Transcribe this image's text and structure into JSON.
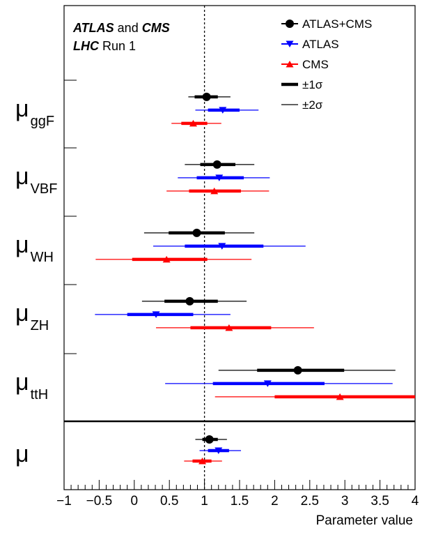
{
  "chart_data": {
    "type": "scatter",
    "xlabel": "Parameter value",
    "xlim": [
      -1,
      4
    ],
    "xticks": [
      {
        "value": -1,
        "label": "−1"
      },
      {
        "value": -0.5,
        "label": "−0.5"
      },
      {
        "value": 0,
        "label": "0"
      },
      {
        "value": 0.5,
        "label": "0.5"
      },
      {
        "value": 1,
        "label": "1"
      },
      {
        "value": 1.5,
        "label": "1.5"
      },
      {
        "value": 2,
        "label": "2"
      },
      {
        "value": 2.5,
        "label": "2.5"
      },
      {
        "value": 3,
        "label": "3"
      },
      {
        "value": 3.5,
        "label": "3.5"
      },
      {
        "value": 4,
        "label": "4"
      }
    ],
    "reference_line": 1,
    "annotation": {
      "line1": {
        "bold": "ATLAS",
        "mid": " and ",
        "bold2": "CMS"
      },
      "line2": {
        "bold": "LHC",
        "rest": " Run 1"
      }
    },
    "legend": [
      {
        "label": "ATLAS+CMS",
        "kind": "circle",
        "color": "#000000"
      },
      {
        "label": "ATLAS",
        "kind": "triangle-down",
        "color": "#0000ff"
      },
      {
        "label": "CMS",
        "kind": "triangle-up",
        "color": "#ff0000"
      },
      {
        "label": "±1σ",
        "kind": "thick-line",
        "color": "#000000"
      },
      {
        "label": "±2σ",
        "kind": "thin-line",
        "color": "#000000"
      }
    ],
    "series_styles": [
      {
        "name": "ATLAS+CMS",
        "marker": "circle",
        "color": "#000000"
      },
      {
        "name": "ATLAS",
        "marker": "triangle-down",
        "color": "#0000ff"
      },
      {
        "name": "CMS",
        "marker": "triangle-up",
        "color": "#ff0000"
      }
    ],
    "parameters": [
      {
        "name": "μ",
        "sub": "ggF",
        "values": [
          {
            "series": "ATLAS+CMS",
            "value": 1.03,
            "sig1": [
              0.86,
              1.19
            ],
            "sig2": [
              0.77,
              1.37
            ]
          },
          {
            "series": "ATLAS",
            "value": 1.26,
            "sig1": [
              1.05,
              1.5
            ],
            "sig2": [
              0.87,
              1.77
            ]
          },
          {
            "series": "CMS",
            "value": 0.84,
            "sig1": [
              0.67,
              1.04
            ],
            "sig2": [
              0.53,
              1.24
            ]
          }
        ]
      },
      {
        "name": "μ",
        "sub": "VBF",
        "values": [
          {
            "series": "ATLAS+CMS",
            "value": 1.18,
            "sig1": [
              0.94,
              1.44
            ],
            "sig2": [
              0.72,
              1.71
            ]
          },
          {
            "series": "ATLAS",
            "value": 1.21,
            "sig1": [
              0.89,
              1.56
            ],
            "sig2": [
              0.62,
              1.93
            ]
          },
          {
            "series": "CMS",
            "value": 1.14,
            "sig1": [
              0.78,
              1.52
            ],
            "sig2": [
              0.46,
              1.92
            ]
          }
        ]
      },
      {
        "name": "μ",
        "sub": "WH",
        "values": [
          {
            "series": "ATLAS+CMS",
            "value": 0.89,
            "sig1": [
              0.49,
              1.29
            ],
            "sig2": [
              0.14,
              1.71
            ]
          },
          {
            "series": "ATLAS",
            "value": 1.25,
            "sig1": [
              0.72,
              1.84
            ],
            "sig2": [
              0.27,
              2.44
            ]
          },
          {
            "series": "CMS",
            "value": 0.46,
            "sig1": [
              -0.03,
              1.04
            ],
            "sig2": [
              -0.55,
              1.67
            ]
          }
        ]
      },
      {
        "name": "μ",
        "sub": "ZH",
        "values": [
          {
            "series": "ATLAS+CMS",
            "value": 0.79,
            "sig1": [
              0.43,
              1.19
            ],
            "sig2": [
              0.11,
              1.6
            ]
          },
          {
            "series": "ATLAS",
            "value": 0.31,
            "sig1": [
              -0.1,
              0.84
            ],
            "sig2": [
              -0.56,
              1.37
            ]
          },
          {
            "series": "CMS",
            "value": 1.35,
            "sig1": [
              0.8,
              1.95
            ],
            "sig2": [
              0.31,
              2.56
            ]
          }
        ]
      },
      {
        "name": "μ",
        "sub": "ttH",
        "values": [
          {
            "series": "ATLAS+CMS",
            "value": 2.33,
            "sig1": [
              1.75,
              2.99
            ],
            "sig2": [
              1.2,
              3.72
            ]
          },
          {
            "series": "ATLAS",
            "value": 1.9,
            "sig1": [
              1.12,
              2.71
            ],
            "sig2": [
              0.44,
              3.68
            ]
          },
          {
            "series": "CMS",
            "value": 2.93,
            "sig1": [
              2.0,
              4.0
            ],
            "sig2": [
              1.15,
              4.0
            ]
          }
        ]
      },
      {
        "name": "μ",
        "sub": "",
        "values": [
          {
            "series": "ATLAS+CMS",
            "value": 1.07,
            "sig1": [
              0.97,
              1.19
            ],
            "sig2": [
              0.87,
              1.32
            ]
          },
          {
            "series": "ATLAS",
            "value": 1.2,
            "sig1": [
              1.05,
              1.35
            ],
            "sig2": [
              0.93,
              1.52
            ]
          },
          {
            "series": "CMS",
            "value": 0.97,
            "sig1": [
              0.83,
              1.1
            ],
            "sig2": [
              0.71,
              1.25
            ]
          }
        ]
      }
    ]
  }
}
